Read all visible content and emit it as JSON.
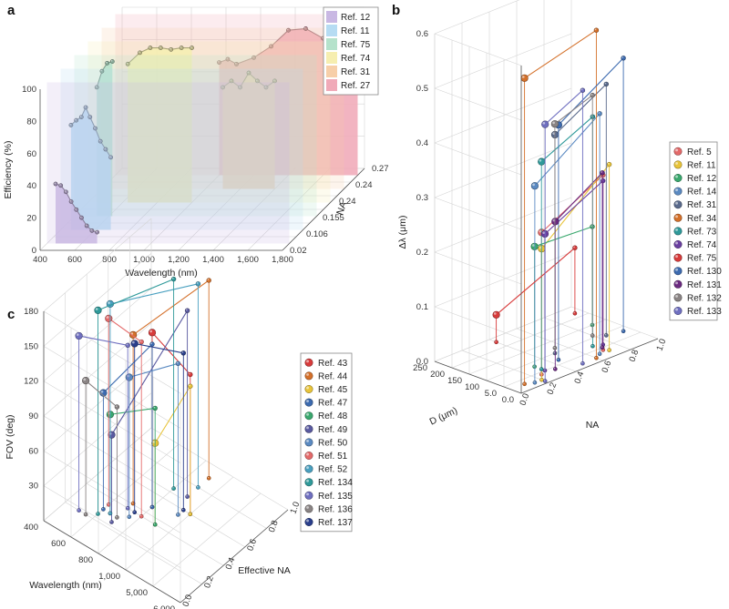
{
  "panels": {
    "a": {
      "letter": "a"
    },
    "b": {
      "letter": "b"
    },
    "c": {
      "letter": "c"
    }
  },
  "chart_data": [
    {
      "id": "a",
      "type": "area",
      "title": "",
      "xlabel": "Wavelength (nm)",
      "ylabel": "Efficiency (%)",
      "zlabel": "NA",
      "xlim": [
        400,
        1800
      ],
      "ylim": [
        0,
        100
      ],
      "xticks": [
        "400",
        "600",
        "800",
        "1,000",
        "1,200",
        "1,400",
        "1,600",
        "1,800"
      ],
      "yticks": [
        "0",
        "20",
        "40",
        "60",
        "80",
        "100"
      ],
      "zticks": [
        "0.02",
        "0.106",
        "0.155",
        "0.24",
        "0.24",
        "0.27"
      ],
      "series": [
        {
          "name": "Ref. 12",
          "color": "#c9b8e3",
          "na_index": 0,
          "x": [
            450,
            480,
            510,
            540,
            570,
            600,
            630,
            660,
            690
          ],
          "y": [
            37,
            36,
            32,
            26,
            21,
            16,
            11,
            8,
            7
          ]
        },
        {
          "name": "Ref. 11",
          "color": "#b6dcf3",
          "na_index": 1,
          "x": [
            460,
            490,
            520,
            545,
            570,
            600,
            630,
            660,
            690
          ],
          "y": [
            65,
            68,
            70,
            76,
            70,
            63,
            55,
            50,
            45
          ]
        },
        {
          "name": "Ref. 75",
          "color": "#b5e2cb",
          "na_index": 2,
          "x": [
            530,
            560,
            590,
            620
          ],
          "y": [
            80,
            90,
            95,
            96
          ]
        },
        {
          "name": "Ref. 74",
          "color": "#f6eeb0",
          "na_index": 3,
          "x": [
            630,
            700,
            760,
            820,
            880,
            940,
            1000
          ],
          "y": [
            86,
            93,
            96,
            96,
            95,
            96,
            96
          ]
        },
        {
          "name": "Ref. 31",
          "color": "#f7cfa9",
          "na_index": 4,
          "x": [
            1100,
            1150,
            1200,
            1250,
            1300,
            1350,
            1400
          ],
          "y": [
            63,
            67,
            63,
            72,
            67,
            63,
            67
          ]
        },
        {
          "name": "Ref. 27",
          "color": "#f0aab8",
          "na_index": 5,
          "x": [
            1000,
            1050,
            1100,
            1200,
            1300,
            1400,
            1500,
            1600,
            1700,
            1800
          ],
          "y": [
            70,
            72,
            69,
            73,
            80,
            90,
            91,
            85,
            80,
            87
          ]
        }
      ]
    },
    {
      "id": "b",
      "type": "scatter",
      "title": "",
      "xlabel": "NA",
      "ylabel": "Δλ (μm)",
      "zlabel": "D (μm)",
      "xlim": [
        0,
        1.0
      ],
      "ylim": [
        0,
        0.6
      ],
      "zlim": [
        0,
        250
      ],
      "xticks": [
        "0.0",
        "0.2",
        "0.4",
        "0.6",
        "0.8",
        "1.0"
      ],
      "yticks": [
        "0.0",
        "0.1",
        "0.2",
        "0.3",
        "0.4",
        "0.5",
        "0.6"
      ],
      "zticks": [
        "0.0",
        "5.0",
        "100",
        "150",
        "200",
        "250"
      ],
      "series": [
        {
          "name": "Ref. 5",
          "color": "#e46a6a",
          "points": [
            [
              0.25,
              0.26,
              40
            ],
            [
              0.7,
              0.32,
              40
            ]
          ]
        },
        {
          "name": "Ref. 11",
          "color": "#e8c43a",
          "points": [
            [
              0.2,
              0.24,
              20
            ],
            [
              0.72,
              0.34,
              30
            ]
          ]
        },
        {
          "name": "Ref. 12",
          "color": "#3aa86e",
          "points": [
            [
              0.3,
              0.22,
              80
            ],
            [
              0.9,
              0.18,
              150
            ]
          ]
        },
        {
          "name": "Ref. 14",
          "color": "#5b8ac2",
          "points": [
            [
              0.15,
              0.36,
              20
            ],
            [
              0.65,
              0.44,
              30
            ]
          ]
        },
        {
          "name": "Ref. 31",
          "color": "#5a6a8c",
          "points": [
            [
              0.5,
              0.4,
              100
            ],
            [
              0.85,
              0.46,
              90
            ]
          ]
        },
        {
          "name": "Ref. 34",
          "color": "#d4702a",
          "points": [
            [
              0.1,
              0.56,
              30
            ],
            [
              0.6,
              0.6,
              20
            ]
          ]
        },
        {
          "name": "Ref. 73",
          "color": "#2f9a9a",
          "points": [
            [
              0.3,
              0.38,
              60
            ],
            [
              0.7,
              0.42,
              70
            ]
          ]
        },
        {
          "name": "Ref. 74",
          "color": "#6a3fa0",
          "points": [
            [
              0.3,
              0.25,
              50
            ],
            [
              0.75,
              0.3,
              60
            ]
          ]
        },
        {
          "name": "Ref. 75",
          "color": "#d83b3b",
          "points": [
            [
              0.4,
              0.05,
              230
            ],
            [
              0.95,
              0.12,
              220
            ]
          ]
        },
        {
          "name": "Ref. 130",
          "color": "#3d6bb0",
          "points": [
            [
              0.45,
              0.43,
              70
            ],
            [
              0.95,
              0.5,
              80
            ]
          ]
        },
        {
          "name": "Ref. 131",
          "color": "#6b2a80",
          "points": [
            [
              0.35,
              0.27,
              40
            ],
            [
              0.72,
              0.32,
              50
            ]
          ]
        },
        {
          "name": "Ref. 132",
          "color": "#8a8484",
          "points": [
            [
              0.55,
              0.41,
              120
            ],
            [
              0.8,
              0.44,
              110
            ]
          ]
        },
        {
          "name": "Ref. 133",
          "color": "#6f6fc0",
          "points": [
            [
              0.2,
              0.47,
              10
            ],
            [
              0.5,
              0.5,
              20
            ]
          ]
        }
      ]
    },
    {
      "id": "c",
      "type": "scatter",
      "title": "",
      "xlabel": "Wavelength (nm)",
      "ylabel": "FOV (deg)",
      "zlabel": "Effective NA",
      "xlim": [
        400,
        6000
      ],
      "ylim": [
        0,
        180
      ],
      "zlim": [
        0,
        1.0
      ],
      "xticks": [
        "400",
        "600",
        "800",
        "1,000",
        "5,000",
        "6,000"
      ],
      "yticks": [
        "30",
        "60",
        "90",
        "120",
        "150",
        "180"
      ],
      "zticks": [
        "0.0",
        "0.2",
        "0.4",
        "0.6",
        "0.8",
        "1.0"
      ],
      "series": [
        {
          "name": "Ref. 43",
          "color": "#d83b3b",
          "points": [
            [
              800,
              150,
              0.5
            ],
            [
              1000,
              120,
              0.6
            ]
          ]
        },
        {
          "name": "Ref. 44",
          "color": "#d4702a",
          "points": [
            [
              700,
              145,
              0.45
            ],
            [
              900,
              170,
              0.9
            ]
          ]
        },
        {
          "name": "Ref. 45",
          "color": "#e8c43a",
          "points": [
            [
              900,
              70,
              0.4
            ],
            [
              1000,
              110,
              0.6
            ]
          ]
        },
        {
          "name": "Ref. 47",
          "color": "#3d6bb0",
          "points": [
            [
              600,
              100,
              0.3
            ],
            [
              800,
              140,
              0.5
            ]
          ]
        },
        {
          "name": "Ref. 48",
          "color": "#3aa86e",
          "points": [
            [
              650,
              85,
              0.3
            ],
            [
              900,
              100,
              0.4
            ]
          ]
        },
        {
          "name": "Ref. 49",
          "color": "#5a5aa0",
          "points": [
            [
              700,
              75,
              0.25
            ],
            [
              900,
              160,
              0.7
            ]
          ]
        },
        {
          "name": "Ref. 50",
          "color": "#5b8ac2",
          "points": [
            [
              750,
              120,
              0.35
            ],
            [
              950,
              130,
              0.55
            ]
          ]
        },
        {
          "name": "Ref. 51",
          "color": "#e46a6a",
          "points": [
            [
              600,
              160,
              0.35
            ],
            [
              800,
              150,
              0.4
            ]
          ]
        },
        {
          "name": "Ref. 52",
          "color": "#4aa0c0",
          "points": [
            [
              650,
              180,
              0.3
            ],
            [
              900,
              175,
              0.8
            ]
          ]
        },
        {
          "name": "Ref. 134",
          "color": "#2f9a9a",
          "points": [
            [
              600,
              175,
              0.25
            ],
            [
              800,
              180,
              0.7
            ]
          ]
        },
        {
          "name": "Ref. 135",
          "color": "#6f6fc0",
          "points": [
            [
              500,
              150,
              0.2
            ],
            [
              700,
              140,
              0.4
            ]
          ]
        },
        {
          "name": "Ref. 136",
          "color": "#8a8484",
          "points": [
            [
              550,
              115,
              0.2
            ],
            [
              700,
              95,
              0.3
            ]
          ]
        },
        {
          "name": "Ref. 137",
          "color": "#2a3f8c",
          "points": [
            [
              750,
              145,
              0.4
            ],
            [
              950,
              135,
              0.6
            ]
          ]
        }
      ]
    }
  ]
}
